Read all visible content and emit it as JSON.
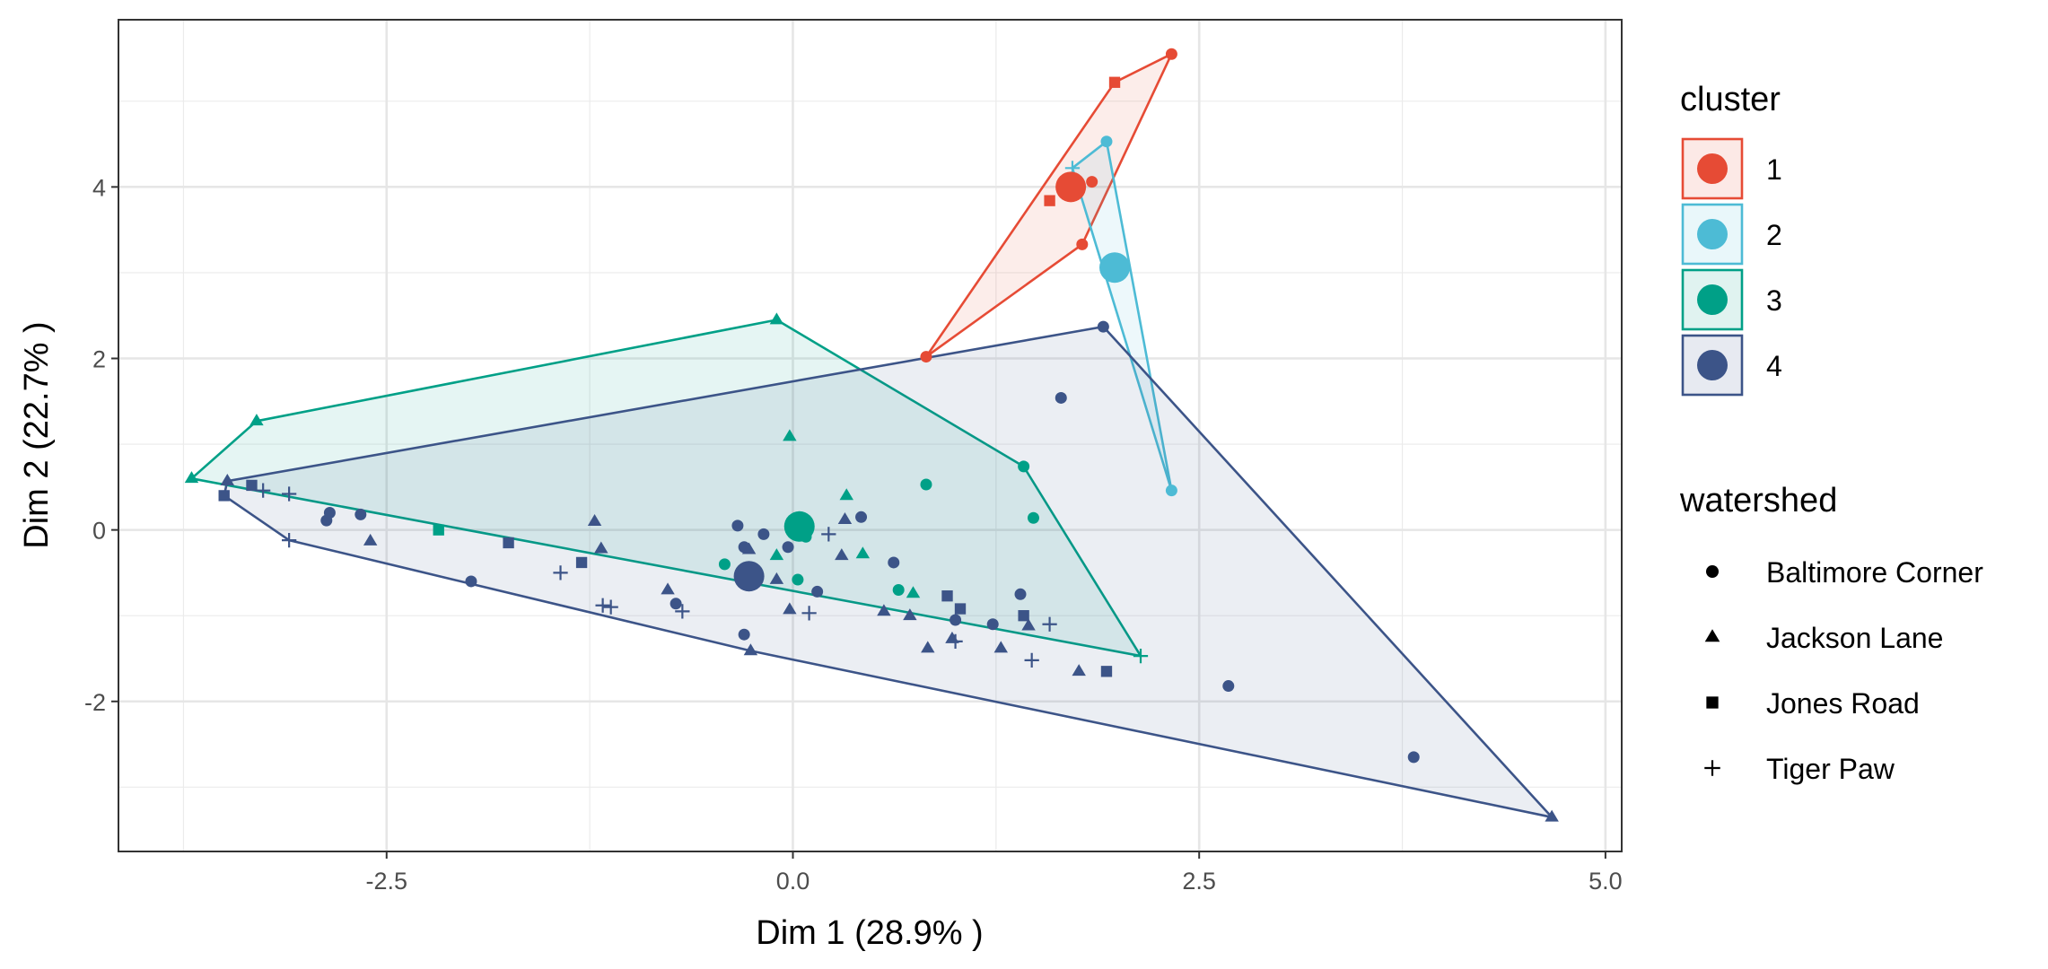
{
  "chart_data": {
    "type": "scatter",
    "xlabel": "Dim 1 (28.9% )",
    "ylabel": "Dim 2 (22.7% )",
    "xlim": [
      -4.15,
      5.1
    ],
    "ylim": [
      -3.75,
      5.95
    ],
    "x_ticks": [
      -2.5,
      0.0,
      2.5,
      5.0
    ],
    "x_tick_labels": [
      "-2.5",
      "0.0",
      "2.5",
      "5.0"
    ],
    "y_ticks": [
      -2,
      0,
      2,
      4
    ],
    "y_tick_labels": [
      "-2",
      "0",
      "2",
      "4"
    ],
    "grid": true,
    "legend_position": "right",
    "cluster_legend": {
      "title": "cluster",
      "entries": [
        {
          "label": "1",
          "color": "#E64B35"
        },
        {
          "label": "2",
          "color": "#4DBBD5"
        },
        {
          "label": "3",
          "color": "#00A087"
        },
        {
          "label": "4",
          "color": "#3C5488"
        }
      ]
    },
    "watershed_legend": {
      "title": "watershed",
      "entries": [
        {
          "label": "Baltimore Corner",
          "shape": "circle"
        },
        {
          "label": "Jackson Lane",
          "shape": "triangle"
        },
        {
          "label": "Jones Road",
          "shape": "square"
        },
        {
          "label": "Tiger Paw",
          "shape": "plus"
        }
      ]
    },
    "hulls": [
      {
        "cluster": "1",
        "points": [
          [
            0.82,
            2.02
          ],
          [
            1.98,
            5.22
          ],
          [
            2.33,
            5.55
          ],
          [
            1.78,
            3.33
          ]
        ]
      },
      {
        "cluster": "2",
        "points": [
          [
            1.72,
            4.22
          ],
          [
            1.93,
            4.53
          ],
          [
            2.33,
            0.46
          ]
        ]
      },
      {
        "cluster": "3",
        "points": [
          [
            -3.7,
            0.6
          ],
          [
            -3.3,
            1.27
          ],
          [
            -0.1,
            2.45
          ],
          [
            1.42,
            0.74
          ],
          [
            2.14,
            -1.47
          ]
        ]
      },
      {
        "cluster": "4",
        "points": [
          [
            -3.5,
            0.4
          ],
          [
            -3.48,
            0.57
          ],
          [
            1.91,
            2.37
          ],
          [
            4.67,
            -3.35
          ],
          [
            -0.26,
            -1.41
          ],
          [
            -3.1,
            -0.12
          ]
        ]
      }
    ],
    "centroids": [
      {
        "cluster": "1",
        "x": 1.71,
        "y": 4.0
      },
      {
        "cluster": "2",
        "x": 1.98,
        "y": 3.06
      },
      {
        "cluster": "3",
        "x": 0.04,
        "y": 0.04
      },
      {
        "cluster": "4",
        "x": -0.27,
        "y": -0.54
      }
    ],
    "points": [
      {
        "x": 0.82,
        "y": 2.02,
        "cluster": "1",
        "watershed": "Baltimore Corner"
      },
      {
        "x": 1.98,
        "y": 5.22,
        "cluster": "1",
        "watershed": "Jones Road"
      },
      {
        "x": 2.33,
        "y": 5.55,
        "cluster": "1",
        "watershed": "Baltimore Corner"
      },
      {
        "x": 1.78,
        "y": 3.33,
        "cluster": "1",
        "watershed": "Baltimore Corner"
      },
      {
        "x": 1.58,
        "y": 3.84,
        "cluster": "1",
        "watershed": "Jones Road"
      },
      {
        "x": 1.84,
        "y": 4.06,
        "cluster": "1",
        "watershed": "Baltimore Corner"
      },
      {
        "x": 1.72,
        "y": 4.22,
        "cluster": "2",
        "watershed": "Tiger Paw"
      },
      {
        "x": 1.93,
        "y": 4.53,
        "cluster": "2",
        "watershed": "Baltimore Corner"
      },
      {
        "x": 2.33,
        "y": 0.46,
        "cluster": "2",
        "watershed": "Baltimore Corner"
      },
      {
        "x": -3.7,
        "y": 0.6,
        "cluster": "3",
        "watershed": "Jackson Lane"
      },
      {
        "x": -3.3,
        "y": 1.27,
        "cluster": "3",
        "watershed": "Jackson Lane"
      },
      {
        "x": -0.1,
        "y": 2.45,
        "cluster": "3",
        "watershed": "Jackson Lane"
      },
      {
        "x": -0.02,
        "y": 1.09,
        "cluster": "3",
        "watershed": "Jackson Lane"
      },
      {
        "x": 1.42,
        "y": 0.74,
        "cluster": "3",
        "watershed": "Baltimore Corner"
      },
      {
        "x": 0.82,
        "y": 0.53,
        "cluster": "3",
        "watershed": "Baltimore Corner"
      },
      {
        "x": 1.48,
        "y": 0.14,
        "cluster": "3",
        "watershed": "Baltimore Corner"
      },
      {
        "x": 2.14,
        "y": -1.47,
        "cluster": "3",
        "watershed": "Tiger Paw"
      },
      {
        "x": -2.18,
        "y": 0.0,
        "cluster": "3",
        "watershed": "Jones Road"
      },
      {
        "x": 0.33,
        "y": 0.4,
        "cluster": "3",
        "watershed": "Jackson Lane"
      },
      {
        "x": 0.43,
        "y": -0.28,
        "cluster": "3",
        "watershed": "Jackson Lane"
      },
      {
        "x": 0.03,
        "y": -0.58,
        "cluster": "3",
        "watershed": "Baltimore Corner"
      },
      {
        "x": -0.42,
        "y": -0.4,
        "cluster": "3",
        "watershed": "Baltimore Corner"
      },
      {
        "x": 0.65,
        "y": -0.7,
        "cluster": "3",
        "watershed": "Baltimore Corner"
      },
      {
        "x": 0.74,
        "y": -0.74,
        "cluster": "3",
        "watershed": "Jackson Lane"
      },
      {
        "x": -0.1,
        "y": -0.3,
        "cluster": "3",
        "watershed": "Jackson Lane"
      },
      {
        "x": 0.08,
        "y": -0.08,
        "cluster": "3",
        "watershed": "Baltimore Corner"
      },
      {
        "x": -3.5,
        "y": 0.4,
        "cluster": "4",
        "watershed": "Jones Road"
      },
      {
        "x": -3.48,
        "y": 0.57,
        "cluster": "4",
        "watershed": "Jackson Lane"
      },
      {
        "x": -3.33,
        "y": 0.52,
        "cluster": "4",
        "watershed": "Jones Road"
      },
      {
        "x": -3.26,
        "y": 0.46,
        "cluster": "4",
        "watershed": "Tiger Paw"
      },
      {
        "x": -3.1,
        "y": 0.42,
        "cluster": "4",
        "watershed": "Tiger Paw"
      },
      {
        "x": -3.1,
        "y": -0.12,
        "cluster": "4",
        "watershed": "Tiger Paw"
      },
      {
        "x": -2.87,
        "y": 0.11,
        "cluster": "4",
        "watershed": "Baltimore Corner"
      },
      {
        "x": -2.85,
        "y": 0.2,
        "cluster": "4",
        "watershed": "Baltimore Corner"
      },
      {
        "x": -2.66,
        "y": 0.18,
        "cluster": "4",
        "watershed": "Baltimore Corner"
      },
      {
        "x": -2.6,
        "y": -0.13,
        "cluster": "4",
        "watershed": "Jackson Lane"
      },
      {
        "x": -1.98,
        "y": -0.6,
        "cluster": "4",
        "watershed": "Baltimore Corner"
      },
      {
        "x": -1.75,
        "y": -0.15,
        "cluster": "4",
        "watershed": "Jones Road"
      },
      {
        "x": -1.43,
        "y": -0.5,
        "cluster": "4",
        "watershed": "Tiger Paw"
      },
      {
        "x": -1.3,
        "y": -0.38,
        "cluster": "4",
        "watershed": "Jones Road"
      },
      {
        "x": -1.22,
        "y": 0.1,
        "cluster": "4",
        "watershed": "Jackson Lane"
      },
      {
        "x": -1.18,
        "y": -0.22,
        "cluster": "4",
        "watershed": "Jackson Lane"
      },
      {
        "x": -1.17,
        "y": -0.88,
        "cluster": "4",
        "watershed": "Tiger Paw"
      },
      {
        "x": -1.12,
        "y": -0.9,
        "cluster": "4",
        "watershed": "Tiger Paw"
      },
      {
        "x": -0.77,
        "y": -0.7,
        "cluster": "4",
        "watershed": "Jackson Lane"
      },
      {
        "x": -0.72,
        "y": -0.86,
        "cluster": "4",
        "watershed": "Baltimore Corner"
      },
      {
        "x": -0.68,
        "y": -0.95,
        "cluster": "4",
        "watershed": "Tiger Paw"
      },
      {
        "x": -0.34,
        "y": 0.05,
        "cluster": "4",
        "watershed": "Baltimore Corner"
      },
      {
        "x": -0.3,
        "y": -0.2,
        "cluster": "4",
        "watershed": "Baltimore Corner"
      },
      {
        "x": -0.27,
        "y": -0.23,
        "cluster": "4",
        "watershed": "Jackson Lane"
      },
      {
        "x": -0.3,
        "y": -1.22,
        "cluster": "4",
        "watershed": "Baltimore Corner"
      },
      {
        "x": -0.26,
        "y": -1.41,
        "cluster": "4",
        "watershed": "Jackson Lane"
      },
      {
        "x": -0.18,
        "y": -0.05,
        "cluster": "4",
        "watershed": "Baltimore Corner"
      },
      {
        "x": -0.1,
        "y": -0.58,
        "cluster": "4",
        "watershed": "Jackson Lane"
      },
      {
        "x": -0.02,
        "y": -0.93,
        "cluster": "4",
        "watershed": "Jackson Lane"
      },
      {
        "x": -0.03,
        "y": -0.2,
        "cluster": "4",
        "watershed": "Baltimore Corner"
      },
      {
        "x": 0.1,
        "y": -0.97,
        "cluster": "4",
        "watershed": "Tiger Paw"
      },
      {
        "x": 0.15,
        "y": -0.72,
        "cluster": "4",
        "watershed": "Baltimore Corner"
      },
      {
        "x": 0.22,
        "y": -0.05,
        "cluster": "4",
        "watershed": "Tiger Paw"
      },
      {
        "x": 0.3,
        "y": -0.3,
        "cluster": "4",
        "watershed": "Jackson Lane"
      },
      {
        "x": 0.32,
        "y": 0.12,
        "cluster": "4",
        "watershed": "Jackson Lane"
      },
      {
        "x": 0.42,
        "y": 0.15,
        "cluster": "4",
        "watershed": "Baltimore Corner"
      },
      {
        "x": 0.56,
        "y": -0.95,
        "cluster": "4",
        "watershed": "Jackson Lane"
      },
      {
        "x": 0.62,
        "y": -0.38,
        "cluster": "4",
        "watershed": "Baltimore Corner"
      },
      {
        "x": 0.72,
        "y": -1.0,
        "cluster": "4",
        "watershed": "Jackson Lane"
      },
      {
        "x": 0.83,
        "y": -1.38,
        "cluster": "4",
        "watershed": "Jackson Lane"
      },
      {
        "x": 0.95,
        "y": -0.77,
        "cluster": "4",
        "watershed": "Jones Road"
      },
      {
        "x": 0.98,
        "y": -1.27,
        "cluster": "4",
        "watershed": "Jackson Lane"
      },
      {
        "x": 1.0,
        "y": -1.3,
        "cluster": "4",
        "watershed": "Tiger Paw"
      },
      {
        "x": 1.03,
        "y": -0.92,
        "cluster": "4",
        "watershed": "Jones Road"
      },
      {
        "x": 1.0,
        "y": -1.05,
        "cluster": "4",
        "watershed": "Baltimore Corner"
      },
      {
        "x": 1.23,
        "y": -1.1,
        "cluster": "4",
        "watershed": "Baltimore Corner"
      },
      {
        "x": 1.28,
        "y": -1.38,
        "cluster": "4",
        "watershed": "Jackson Lane"
      },
      {
        "x": 1.4,
        "y": -0.75,
        "cluster": "4",
        "watershed": "Baltimore Corner"
      },
      {
        "x": 1.42,
        "y": -1.0,
        "cluster": "4",
        "watershed": "Jones Road"
      },
      {
        "x": 1.45,
        "y": -1.12,
        "cluster": "4",
        "watershed": "Jackson Lane"
      },
      {
        "x": 1.47,
        "y": -1.52,
        "cluster": "4",
        "watershed": "Tiger Paw"
      },
      {
        "x": 1.58,
        "y": -1.1,
        "cluster": "4",
        "watershed": "Tiger Paw"
      },
      {
        "x": 1.65,
        "y": 1.54,
        "cluster": "4",
        "watershed": "Baltimore Corner"
      },
      {
        "x": 1.76,
        "y": -1.65,
        "cluster": "4",
        "watershed": "Jackson Lane"
      },
      {
        "x": 1.91,
        "y": 2.37,
        "cluster": "4",
        "watershed": "Baltimore Corner"
      },
      {
        "x": 1.93,
        "y": -1.65,
        "cluster": "4",
        "watershed": "Jones Road"
      },
      {
        "x": 2.68,
        "y": -1.82,
        "cluster": "4",
        "watershed": "Baltimore Corner"
      },
      {
        "x": 3.82,
        "y": -2.65,
        "cluster": "4",
        "watershed": "Baltimore Corner"
      },
      {
        "x": 4.67,
        "y": -3.35,
        "cluster": "4",
        "watershed": "Jackson Lane"
      }
    ]
  }
}
